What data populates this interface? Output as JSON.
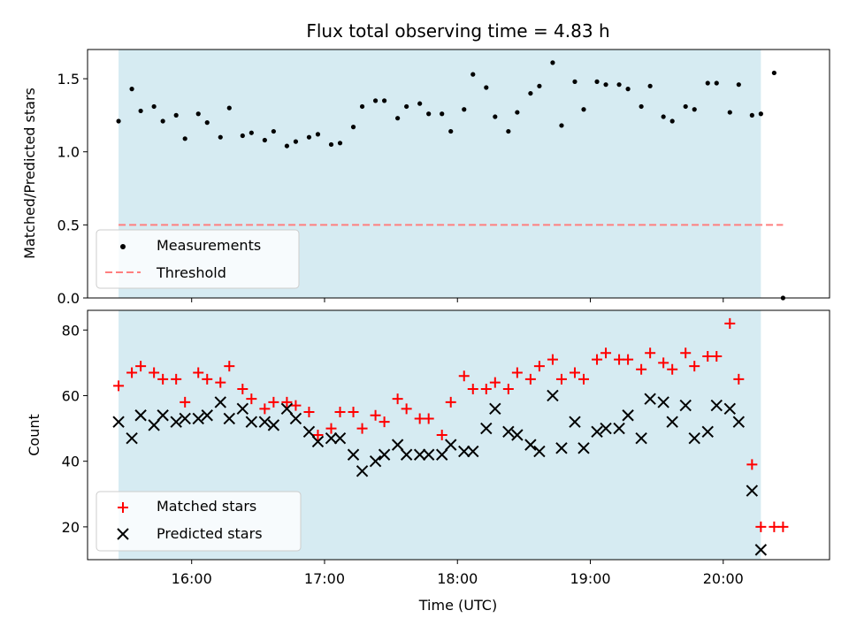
{
  "chart_data": [
    {
      "type": "scatter",
      "title": "Flux total observing time = 4.83 h",
      "xlabel": "",
      "ylabel": "Matched/Predicted stars",
      "xlim": [
        "15:13",
        "20:48"
      ],
      "ylim": [
        0,
        1.7
      ],
      "yticks": [
        "0.0",
        "0.5",
        "1.0",
        "1.5"
      ],
      "xticks": [
        "16:00",
        "17:00",
        "18:00",
        "19:00",
        "20:00"
      ],
      "shaded_span": [
        "15:27",
        "20:17"
      ],
      "threshold": 0.5,
      "threshold_span": [
        "15:27",
        "20:27"
      ],
      "colors": {
        "shade": "#add8e6",
        "measurements": "#000000",
        "threshold": "#ff7f7f"
      },
      "legend": {
        "position": "lower-left",
        "entries": [
          "Measurements",
          "Threshold"
        ]
      },
      "series": [
        {
          "name": "Measurements",
          "x": [
            "15:27",
            "15:33",
            "15:37",
            "15:43",
            "15:47",
            "15:53",
            "15:57",
            "16:03",
            "16:07",
            "16:13",
            "16:17",
            "16:23",
            "16:27",
            "16:33",
            "16:37",
            "16:43",
            "16:47",
            "16:53",
            "16:57",
            "17:03",
            "17:07",
            "17:13",
            "17:17",
            "17:23",
            "17:27",
            "17:33",
            "17:37",
            "17:43",
            "17:47",
            "17:53",
            "17:57",
            "18:03",
            "18:07",
            "18:13",
            "18:17",
            "18:23",
            "18:27",
            "18:33",
            "18:37",
            "18:43",
            "18:47",
            "18:53",
            "18:57",
            "19:03",
            "19:07",
            "19:13",
            "19:17",
            "19:23",
            "19:27",
            "19:33",
            "19:37",
            "19:43",
            "19:47",
            "19:53",
            "19:57",
            "20:03",
            "20:07",
            "20:13",
            "20:17",
            "20:23",
            "20:27"
          ],
          "y": [
            1.21,
            1.43,
            1.28,
            1.31,
            1.21,
            1.25,
            1.09,
            1.26,
            1.2,
            1.1,
            1.3,
            1.11,
            1.13,
            1.08,
            1.14,
            1.04,
            1.07,
            1.1,
            1.12,
            1.05,
            1.06,
            1.17,
            1.31,
            1.35,
            1.35,
            1.23,
            1.31,
            1.33,
            1.26,
            1.26,
            1.14,
            1.29,
            1.53,
            1.44,
            1.24,
            1.14,
            1.27,
            1.4,
            1.45,
            1.61,
            1.18,
            1.48,
            1.29,
            1.48,
            1.46,
            1.46,
            1.43,
            1.31,
            1.45,
            1.24,
            1.21,
            1.31,
            1.29,
            1.47,
            1.47,
            1.27,
            1.46,
            1.25,
            1.26,
            1.54,
            0.0
          ]
        },
        {
          "name": "Threshold",
          "values": [
            0.5
          ]
        }
      ]
    },
    {
      "type": "scatter",
      "title": "",
      "xlabel": "Time (UTC)",
      "ylabel": "Count",
      "xlim": [
        "15:13",
        "20:48"
      ],
      "ylim": [
        10,
        86
      ],
      "yticks": [
        "20",
        "40",
        "60",
        "80"
      ],
      "xticks": [
        "16:00",
        "17:00",
        "18:00",
        "19:00",
        "20:00"
      ],
      "shaded_span": [
        "15:27",
        "20:17"
      ],
      "colors": {
        "shade": "#add8e6",
        "matched": "#ff0000",
        "predicted": "#000000"
      },
      "legend": {
        "position": "lower-left",
        "entries": [
          "Matched stars",
          "Predicted stars"
        ]
      },
      "series": [
        {
          "name": "Matched stars",
          "x": [
            "15:27",
            "15:33",
            "15:37",
            "15:43",
            "15:47",
            "15:53",
            "15:57",
            "16:03",
            "16:07",
            "16:13",
            "16:17",
            "16:23",
            "16:27",
            "16:33",
            "16:37",
            "16:43",
            "16:47",
            "16:53",
            "16:57",
            "17:03",
            "17:07",
            "17:13",
            "17:17",
            "17:23",
            "17:27",
            "17:33",
            "17:37",
            "17:43",
            "17:47",
            "17:53",
            "17:57",
            "18:03",
            "18:07",
            "18:13",
            "18:17",
            "18:23",
            "18:27",
            "18:33",
            "18:37",
            "18:43",
            "18:47",
            "18:53",
            "18:57",
            "19:03",
            "19:07",
            "19:13",
            "19:17",
            "19:23",
            "19:27",
            "19:33",
            "19:37",
            "19:43",
            "19:47",
            "19:53",
            "19:57",
            "20:03",
            "20:07",
            "20:13",
            "20:17",
            "20:23",
            "20:27"
          ],
          "y": [
            63,
            67,
            69,
            67,
            65,
            65,
            58,
            67,
            65,
            64,
            69,
            62,
            59,
            56,
            58,
            58,
            57,
            55,
            48,
            50,
            55,
            55,
            50,
            54,
            52,
            59,
            56,
            53,
            53,
            48,
            58,
            66,
            62,
            62,
            64,
            62,
            67,
            65,
            69,
            71,
            65,
            67,
            65,
            71,
            73,
            71,
            71,
            68,
            73,
            70,
            68,
            73,
            69,
            72,
            72,
            82,
            65,
            39,
            20,
            20,
            20
          ]
        },
        {
          "name": "Predicted stars",
          "x": [
            "15:27",
            "15:33",
            "15:37",
            "15:43",
            "15:47",
            "15:53",
            "15:57",
            "16:03",
            "16:07",
            "16:13",
            "16:17",
            "16:23",
            "16:27",
            "16:33",
            "16:37",
            "16:43",
            "16:47",
            "16:53",
            "16:57",
            "17:03",
            "17:07",
            "17:13",
            "17:17",
            "17:23",
            "17:27",
            "17:33",
            "17:37",
            "17:43",
            "17:47",
            "17:53",
            "17:57",
            "18:03",
            "18:07",
            "18:13",
            "18:17",
            "18:23",
            "18:27",
            "18:33",
            "18:37",
            "18:43",
            "18:47",
            "18:53",
            "18:57",
            "19:03",
            "19:07",
            "19:13",
            "19:17",
            "19:23",
            "19:27",
            "19:33",
            "19:37",
            "19:43",
            "19:47",
            "19:53",
            "19:57",
            "20:03",
            "20:07",
            "20:13",
            "20:17"
          ],
          "y": [
            52,
            47,
            54,
            51,
            54,
            52,
            53,
            53,
            54,
            58,
            53,
            56,
            52,
            52,
            51,
            56,
            53,
            49,
            46,
            47,
            47,
            42,
            37,
            40,
            42,
            45,
            42,
            42,
            42,
            42,
            45,
            43,
            43,
            50,
            56,
            49,
            48,
            45,
            43,
            60,
            44,
            52,
            44,
            49,
            50,
            50,
            54,
            47,
            59,
            58,
            52,
            57,
            47,
            49,
            57,
            56,
            52,
            31,
            13
          ]
        }
      ]
    }
  ]
}
